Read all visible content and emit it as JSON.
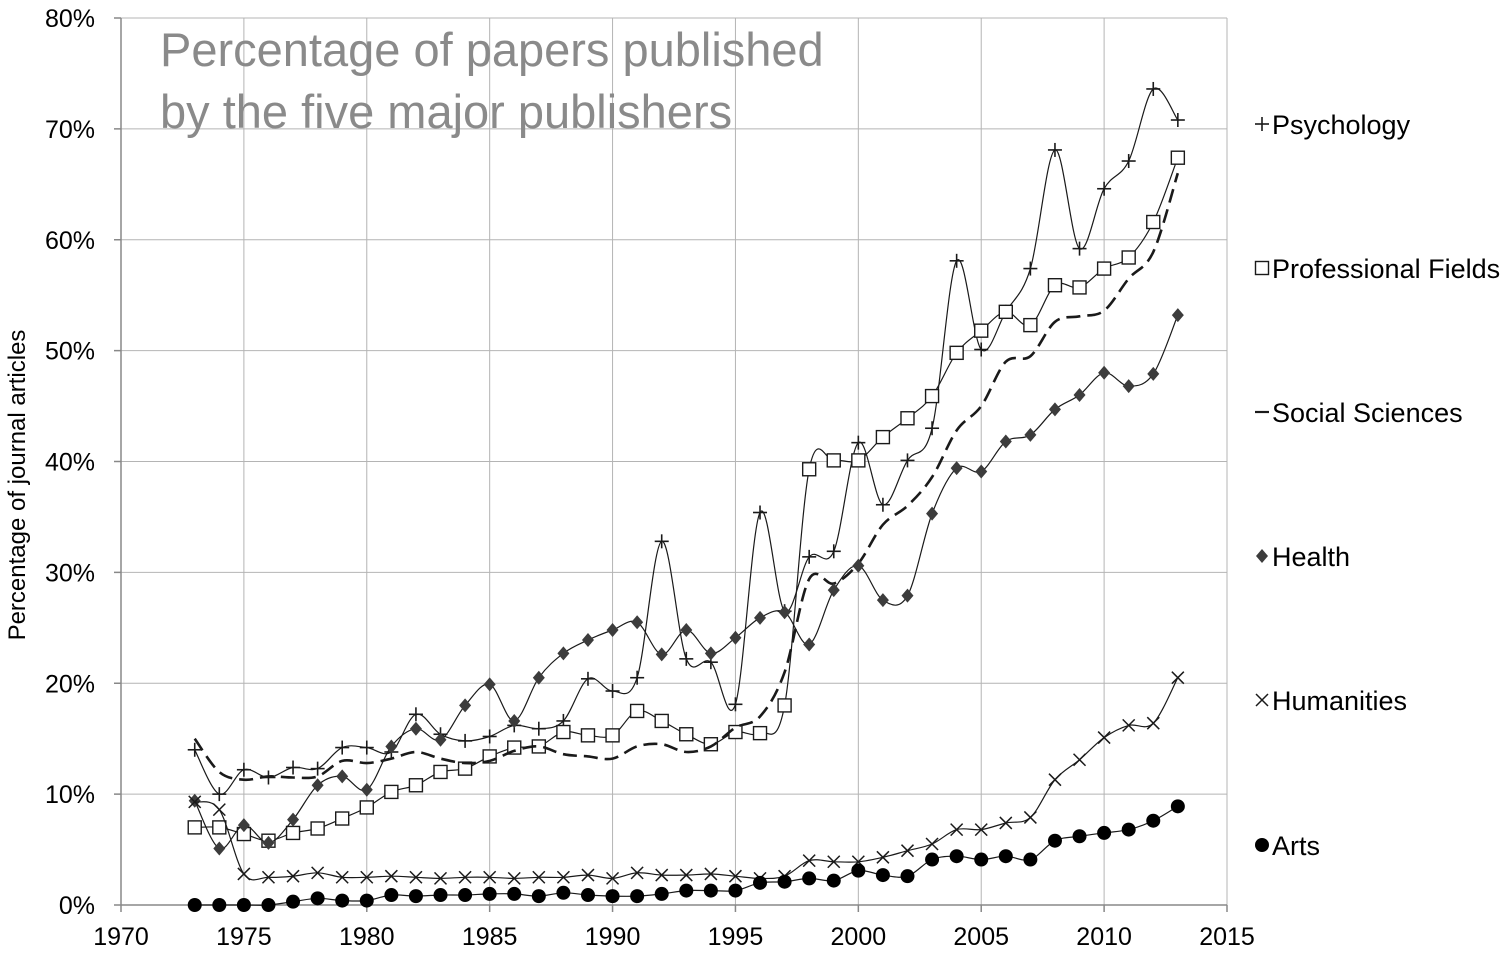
{
  "chart_data": {
    "type": "line",
    "title_lines": [
      "Percentage of papers published",
      "by the five major publishers"
    ],
    "xlabel": "",
    "ylabel": "Percentage of journal articles",
    "xlim": [
      1970,
      2015
    ],
    "ylim": [
      0,
      80
    ],
    "x_ticks": [
      "1970",
      "1975",
      "1980",
      "1985",
      "1990",
      "1995",
      "2000",
      "2005",
      "2010",
      "2015"
    ],
    "y_ticks": [
      "0%",
      "10%",
      "20%",
      "30%",
      "40%",
      "50%",
      "60%",
      "70%",
      "80%"
    ],
    "grid": true,
    "legend_position": "right",
    "x": [
      1973,
      1974,
      1975,
      1976,
      1977,
      1978,
      1979,
      1980,
      1981,
      1982,
      1983,
      1984,
      1985,
      1986,
      1987,
      1988,
      1989,
      1990,
      1991,
      1992,
      1993,
      1994,
      1995,
      1996,
      1997,
      1998,
      1999,
      2000,
      2001,
      2002,
      2003,
      2004,
      2005,
      2006,
      2007,
      2008,
      2009,
      2010,
      2011,
      2012,
      2013
    ],
    "series": [
      {
        "name": "Psychology",
        "marker": "plus",
        "line": "solid",
        "values": [
          14.0,
          10.0,
          12.2,
          11.5,
          12.4,
          12.3,
          14.2,
          14.2,
          13.8,
          17.2,
          15.4,
          14.8,
          15.2,
          16.2,
          15.9,
          16.6,
          20.4,
          19.3,
          20.5,
          32.8,
          22.2,
          21.9,
          18.1,
          35.4,
          26.5,
          31.4,
          31.9,
          41.7,
          36.1,
          40.1,
          43.0,
          58.1,
          50.1,
          53.5,
          57.4,
          68.1,
          59.2,
          64.6,
          67.1,
          73.6,
          70.8
        ]
      },
      {
        "name": "Professional Fields",
        "marker": "square",
        "line": "solid",
        "values": [
          7.0,
          7.0,
          6.4,
          5.8,
          6.5,
          6.9,
          7.8,
          8.8,
          10.2,
          10.8,
          12.0,
          12.3,
          13.4,
          14.2,
          14.3,
          15.6,
          15.3,
          15.3,
          17.5,
          16.6,
          15.4,
          14.5,
          15.6,
          15.5,
          18.0,
          39.3,
          40.1,
          40.1,
          42.2,
          43.9,
          45.9,
          49.8,
          51.8,
          53.5,
          52.3,
          55.9,
          55.7,
          57.4,
          58.4,
          61.6,
          67.4
        ]
      },
      {
        "name": "Social Sciences",
        "marker": "none",
        "line": "dashed",
        "values": [
          15.0,
          12.0,
          11.3,
          11.6,
          11.5,
          11.6,
          13.0,
          12.8,
          13.2,
          13.8,
          13.2,
          12.8,
          13.0,
          13.9,
          14.3,
          13.6,
          13.4,
          13.2,
          14.3,
          14.5,
          13.8,
          14.3,
          16.0,
          17.0,
          21.0,
          29.4,
          29.0,
          30.8,
          34.3,
          36.0,
          38.6,
          42.8,
          45.0,
          49.0,
          49.5,
          52.6,
          53.1,
          53.6,
          56.5,
          58.9,
          66.0
        ]
      },
      {
        "name": "Health",
        "marker": "diamond",
        "line": "solid",
        "values": [
          9.4,
          5.1,
          7.2,
          5.6,
          7.7,
          10.8,
          11.6,
          10.4,
          14.3,
          15.9,
          14.9,
          18.0,
          19.9,
          16.6,
          20.5,
          22.7,
          23.9,
          24.8,
          25.5,
          22.6,
          24.8,
          22.7,
          24.1,
          25.9,
          26.4,
          23.5,
          28.4,
          30.6,
          27.5,
          27.9,
          35.3,
          39.4,
          39.1,
          41.8,
          42.4,
          44.7,
          46.0,
          48.0,
          46.8,
          47.9,
          53.2
        ]
      },
      {
        "name": "Humanities",
        "marker": "x",
        "line": "solid",
        "values": [
          9.3,
          8.6,
          2.8,
          2.5,
          2.6,
          2.9,
          2.5,
          2.5,
          2.6,
          2.5,
          2.4,
          2.5,
          2.5,
          2.4,
          2.5,
          2.5,
          2.7,
          2.4,
          2.9,
          2.7,
          2.7,
          2.8,
          2.6,
          2.4,
          2.6,
          4.0,
          3.9,
          3.9,
          4.3,
          4.9,
          5.5,
          6.8,
          6.8,
          7.4,
          7.9,
          11.3,
          13.1,
          15.1,
          16.2,
          16.4,
          20.5
        ]
      },
      {
        "name": "Arts",
        "marker": "circle",
        "line": "solid",
        "values": [
          0.0,
          0.0,
          0.0,
          0.0,
          0.3,
          0.6,
          0.4,
          0.4,
          0.9,
          0.8,
          0.9,
          0.9,
          1.0,
          1.0,
          0.8,
          1.1,
          0.9,
          0.8,
          0.8,
          1.0,
          1.3,
          1.3,
          1.3,
          2.0,
          2.1,
          2.4,
          2.2,
          3.1,
          2.7,
          2.6,
          4.1,
          4.4,
          4.1,
          4.4,
          4.1,
          5.8,
          6.2,
          6.5,
          6.8,
          7.6,
          8.9
        ]
      }
    ]
  },
  "colors": {
    "line": "#1a1a1a",
    "diamond": "#3c3c3c",
    "grid": "#b4b4b4",
    "title": "#8a8a8a"
  }
}
